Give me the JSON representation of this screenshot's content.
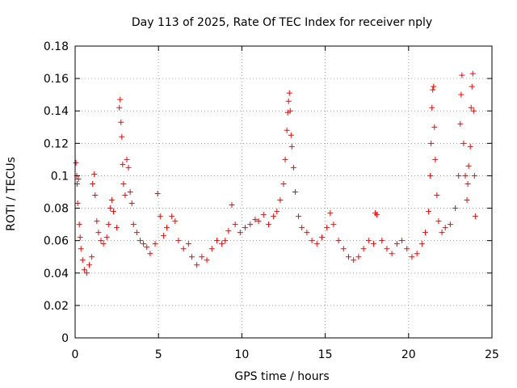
{
  "chart_data": {
    "type": "scatter",
    "title": "Day 113 of 2025, Rate Of TEC Index for receiver nply",
    "xlabel": "GPS time / hours",
    "ylabel": "ROTI / TECUs",
    "xlim": [
      0,
      25
    ],
    "ylim": [
      0,
      0.18
    ],
    "xticks": [
      0,
      5,
      10,
      15,
      20,
      25
    ],
    "xtick_labels": [
      "0",
      "5",
      "10",
      "15",
      "20",
      "25"
    ],
    "yticks": [
      0,
      0.02,
      0.04,
      0.06,
      0.08,
      0.1,
      0.12,
      0.14,
      0.16,
      0.18
    ],
    "ytick_labels": [
      "0",
      "0.02",
      "0.04",
      "0.06",
      "0.08",
      "0.1",
      "0.12",
      "0.14",
      "0.16",
      "0.18"
    ],
    "grid": true,
    "marker": "+",
    "color": "#ff0000",
    "points": [
      [
        0.05,
        0.108
      ],
      [
        0.1,
        0.1
      ],
      [
        0.12,
        0.095
      ],
      [
        0.15,
        0.083
      ],
      [
        0.2,
        0.098
      ],
      [
        0.25,
        0.07
      ],
      [
        0.3,
        0.062
      ],
      [
        0.35,
        0.055
      ],
      [
        0.45,
        0.048
      ],
      [
        0.55,
        0.042
      ],
      [
        0.7,
        0.04
      ],
      [
        0.85,
        0.045
      ],
      [
        1.0,
        0.05
      ],
      [
        1.05,
        0.095
      ],
      [
        1.15,
        0.101
      ],
      [
        1.2,
        0.088
      ],
      [
        1.3,
        0.072
      ],
      [
        1.4,
        0.065
      ],
      [
        1.55,
        0.06
      ],
      [
        1.7,
        0.058
      ],
      [
        1.9,
        0.062
      ],
      [
        2.0,
        0.07
      ],
      [
        2.1,
        0.08
      ],
      [
        2.2,
        0.085
      ],
      [
        2.3,
        0.078
      ],
      [
        2.5,
        0.068
      ],
      [
        2.65,
        0.142
      ],
      [
        2.7,
        0.147
      ],
      [
        2.75,
        0.133
      ],
      [
        2.8,
        0.124
      ],
      [
        2.85,
        0.107
      ],
      [
        2.9,
        0.095
      ],
      [
        3.0,
        0.088
      ],
      [
        3.1,
        0.11
      ],
      [
        3.2,
        0.105
      ],
      [
        3.3,
        0.09
      ],
      [
        3.4,
        0.083
      ],
      [
        3.5,
        0.07
      ],
      [
        3.7,
        0.065
      ],
      [
        3.9,
        0.06
      ],
      [
        4.1,
        0.058
      ],
      [
        4.3,
        0.056
      ],
      [
        4.5,
        0.052
      ],
      [
        4.8,
        0.058
      ],
      [
        4.95,
        0.089
      ],
      [
        5.1,
        0.075
      ],
      [
        5.3,
        0.063
      ],
      [
        5.5,
        0.068
      ],
      [
        5.8,
        0.075
      ],
      [
        6.0,
        0.072
      ],
      [
        6.2,
        0.06
      ],
      [
        6.5,
        0.055
      ],
      [
        6.8,
        0.058
      ],
      [
        7.0,
        0.05
      ],
      [
        7.3,
        0.045
      ],
      [
        7.6,
        0.05
      ],
      [
        7.9,
        0.048
      ],
      [
        8.2,
        0.055
      ],
      [
        8.5,
        0.06
      ],
      [
        8.8,
        0.058
      ],
      [
        9.0,
        0.06
      ],
      [
        9.2,
        0.066
      ],
      [
        9.4,
        0.082
      ],
      [
        9.6,
        0.07
      ],
      [
        9.9,
        0.065
      ],
      [
        10.2,
        0.068
      ],
      [
        10.5,
        0.07
      ],
      [
        10.8,
        0.073
      ],
      [
        11.0,
        0.072
      ],
      [
        11.3,
        0.076
      ],
      [
        11.6,
        0.07
      ],
      [
        11.9,
        0.075
      ],
      [
        12.1,
        0.078
      ],
      [
        12.3,
        0.085
      ],
      [
        12.5,
        0.095
      ],
      [
        12.6,
        0.11
      ],
      [
        12.7,
        0.128
      ],
      [
        12.75,
        0.139
      ],
      [
        12.8,
        0.146
      ],
      [
        12.85,
        0.151
      ],
      [
        12.9,
        0.14
      ],
      [
        12.95,
        0.125
      ],
      [
        13.0,
        0.118
      ],
      [
        13.1,
        0.105
      ],
      [
        13.2,
        0.09
      ],
      [
        13.4,
        0.075
      ],
      [
        13.6,
        0.068
      ],
      [
        13.9,
        0.065
      ],
      [
        14.2,
        0.06
      ],
      [
        14.5,
        0.058
      ],
      [
        14.8,
        0.062
      ],
      [
        15.1,
        0.068
      ],
      [
        15.3,
        0.077
      ],
      [
        15.5,
        0.07
      ],
      [
        15.8,
        0.06
      ],
      [
        16.1,
        0.055
      ],
      [
        16.4,
        0.05
      ],
      [
        16.7,
        0.048
      ],
      [
        17.0,
        0.05
      ],
      [
        17.3,
        0.055
      ],
      [
        17.6,
        0.06
      ],
      [
        17.9,
        0.058
      ],
      [
        18.0,
        0.077
      ],
      [
        18.1,
        0.076
      ],
      [
        18.4,
        0.06
      ],
      [
        18.7,
        0.055
      ],
      [
        19.0,
        0.052
      ],
      [
        19.3,
        0.058
      ],
      [
        19.6,
        0.06
      ],
      [
        19.9,
        0.055
      ],
      [
        20.2,
        0.05
      ],
      [
        20.5,
        0.052
      ],
      [
        20.8,
        0.058
      ],
      [
        21.0,
        0.065
      ],
      [
        21.2,
        0.078
      ],
      [
        21.3,
        0.1
      ],
      [
        21.35,
        0.12
      ],
      [
        21.4,
        0.142
      ],
      [
        21.45,
        0.153
      ],
      [
        21.5,
        0.155
      ],
      [
        21.55,
        0.13
      ],
      [
        21.6,
        0.11
      ],
      [
        21.7,
        0.088
      ],
      [
        21.8,
        0.072
      ],
      [
        22.0,
        0.065
      ],
      [
        22.2,
        0.068
      ],
      [
        22.5,
        0.07
      ],
      [
        22.8,
        0.08
      ],
      [
        23.0,
        0.1
      ],
      [
        23.1,
        0.132
      ],
      [
        23.15,
        0.15
      ],
      [
        23.2,
        0.162
      ],
      [
        23.3,
        0.12
      ],
      [
        23.4,
        0.1
      ],
      [
        23.5,
        0.085
      ],
      [
        23.55,
        0.095
      ],
      [
        23.6,
        0.106
      ],
      [
        23.7,
        0.118
      ],
      [
        23.75,
        0.142
      ],
      [
        23.8,
        0.155
      ],
      [
        23.85,
        0.163
      ],
      [
        23.9,
        0.14
      ],
      [
        23.95,
        0.1
      ],
      [
        24.0,
        0.075
      ]
    ]
  }
}
